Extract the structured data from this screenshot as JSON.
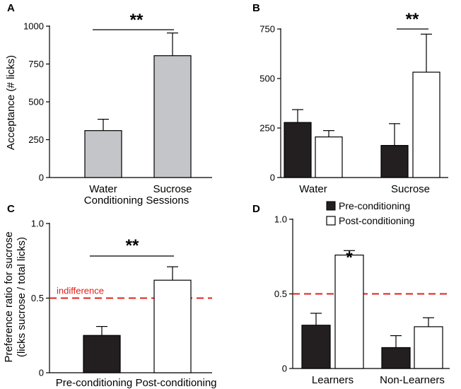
{
  "colors": {
    "grey": "#c3c5c9",
    "black": "#231f20",
    "white": "#ffffff",
    "red": "#e0201b"
  },
  "legend": {
    "pre": "Pre-conditioning",
    "post": "Post-conditioning"
  },
  "chart_data": [
    {
      "panel": "A",
      "type": "bar",
      "ylabel": "Acceptance  (# licks)",
      "xlabel": "Conditioning Sessions",
      "ylim": [
        0,
        1000
      ],
      "yticks": [
        0,
        250,
        500,
        750,
        1000
      ],
      "categories": [
        "Water",
        "Sucrose"
      ],
      "values": [
        310,
        805
      ],
      "errors": [
        75,
        150
      ],
      "fill": [
        "grey",
        "grey"
      ],
      "significance": "**"
    },
    {
      "panel": "B",
      "type": "bar",
      "ylim": [
        0,
        750
      ],
      "yticks": [
        0,
        250,
        500,
        750
      ],
      "categories": [
        "Water",
        "Sucrose"
      ],
      "series": [
        {
          "name": "Pre-conditioning",
          "values": [
            278,
            162
          ],
          "errors": [
            65,
            110
          ]
        },
        {
          "name": "Post-conditioning",
          "values": [
            205,
            532
          ],
          "errors": [
            32,
            192
          ]
        }
      ],
      "significance": "**"
    },
    {
      "panel": "C",
      "type": "bar",
      "ylabel": "Preference ratio for sucrose",
      "ylabel2": "(licks sucrose / total licks)",
      "ylim": [
        0,
        1.0
      ],
      "yticks": [
        0,
        0.5,
        1.0
      ],
      "yticklabels": [
        "0",
        "0.5",
        "1.0"
      ],
      "categories": [
        "Pre-conditioning",
        "Post-conditioning"
      ],
      "values": [
        0.25,
        0.62
      ],
      "errors": [
        0.06,
        0.09
      ],
      "fill": [
        "black",
        "white"
      ],
      "reference_line": {
        "y": 0.5,
        "label": "indifference"
      },
      "significance": "**"
    },
    {
      "panel": "D",
      "type": "bar",
      "ylim": [
        0,
        1.0
      ],
      "yticks": [
        0,
        0.5,
        1.0
      ],
      "yticklabels": [
        "0",
        "0.5",
        "1.0"
      ],
      "categories": [
        "Learners",
        "Non-Learners"
      ],
      "series": [
        {
          "name": "Pre-conditioning",
          "values": [
            0.29,
            0.14
          ],
          "errors": [
            0.08,
            0.08
          ]
        },
        {
          "name": "Post-conditioning",
          "values": [
            0.76,
            0.28
          ],
          "errors": [
            0.03,
            0.06
          ]
        }
      ],
      "reference_line": {
        "y": 0.5
      },
      "significance": "*"
    }
  ]
}
